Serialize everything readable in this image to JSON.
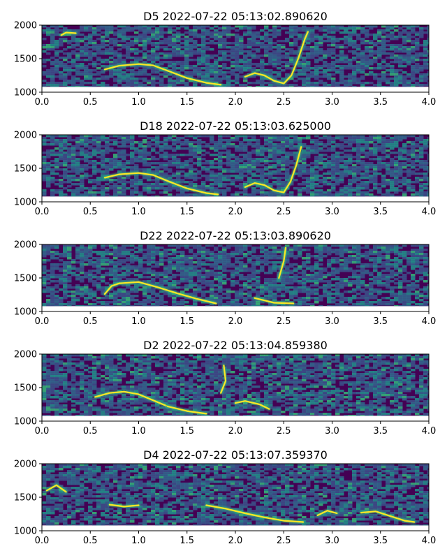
{
  "chart_data": [
    {
      "type": "heatmap",
      "title": "D5 2022-07-22 05:13:02.890620",
      "xlim": [
        0.0,
        4.0
      ],
      "ylim": [
        1000,
        2000
      ],
      "xticks": [
        "0.0",
        "0.5",
        "1.0",
        "1.5",
        "2.0",
        "2.5",
        "3.0",
        "3.5",
        "4.0"
      ],
      "yticks": [
        "1000",
        "1500",
        "2000"
      ],
      "colormap": "viridis",
      "traces": [
        {
          "points": [
            [
              0.65,
              1340
            ],
            [
              0.8,
              1395
            ],
            [
              1.0,
              1420
            ],
            [
              1.15,
              1400
            ],
            [
              1.3,
              1320
            ],
            [
              1.5,
              1210
            ],
            [
              1.7,
              1140
            ],
            [
              1.85,
              1110
            ]
          ]
        },
        {
          "points": [
            [
              2.1,
              1230
            ],
            [
              2.2,
              1285
            ],
            [
              2.3,
              1250
            ],
            [
              2.4,
              1170
            ],
            [
              2.5,
              1130
            ],
            [
              2.58,
              1250
            ],
            [
              2.65,
              1500
            ],
            [
              2.72,
              1800
            ],
            [
              2.75,
              1900
            ]
          ]
        },
        {
          "points": [
            [
              0.2,
              1850
            ],
            [
              0.25,
              1890
            ],
            [
              0.35,
              1880
            ]
          ]
        }
      ]
    },
    {
      "type": "heatmap",
      "title": "D18 2022-07-22 05:13:03.625000",
      "xlim": [
        0.0,
        4.0
      ],
      "ylim": [
        1000,
        2000
      ],
      "xticks": [
        "0.0",
        "0.5",
        "1.0",
        "1.5",
        "2.0",
        "2.5",
        "3.0",
        "3.5",
        "4.0"
      ],
      "yticks": [
        "1000",
        "1500",
        "2000"
      ],
      "colormap": "viridis",
      "traces": [
        {
          "points": [
            [
              0.65,
              1360
            ],
            [
              0.8,
              1410
            ],
            [
              1.0,
              1430
            ],
            [
              1.15,
              1400
            ],
            [
              1.3,
              1310
            ],
            [
              1.5,
              1200
            ],
            [
              1.7,
              1130
            ],
            [
              1.82,
              1110
            ]
          ]
        },
        {
          "points": [
            [
              2.1,
              1220
            ],
            [
              2.2,
              1280
            ],
            [
              2.3,
              1250
            ],
            [
              2.4,
              1170
            ],
            [
              2.5,
              1140
            ],
            [
              2.57,
              1300
            ],
            [
              2.63,
              1550
            ],
            [
              2.68,
              1820
            ]
          ]
        }
      ]
    },
    {
      "type": "heatmap",
      "title": "D22 2022-07-22 05:13:03.890620",
      "xlim": [
        0.0,
        4.0
      ],
      "ylim": [
        1000,
        2000
      ],
      "xticks": [
        "0.0",
        "0.5",
        "1.0",
        "1.5",
        "2.0",
        "2.5",
        "3.0",
        "3.5",
        "4.0"
      ],
      "yticks": [
        "1000",
        "1500",
        "2000"
      ],
      "colormap": "viridis",
      "traces": [
        {
          "points": [
            [
              0.65,
              1260
            ],
            [
              0.72,
              1380
            ],
            [
              0.8,
              1420
            ],
            [
              1.0,
              1440
            ],
            [
              1.2,
              1360
            ],
            [
              1.4,
              1270
            ],
            [
              1.6,
              1190
            ],
            [
              1.8,
              1120
            ]
          ]
        },
        {
          "points": [
            [
              2.45,
              1500
            ],
            [
              2.5,
              1750
            ],
            [
              2.52,
              1950
            ]
          ]
        },
        {
          "points": [
            [
              2.2,
              1200
            ],
            [
              2.4,
              1130
            ],
            [
              2.6,
              1120
            ]
          ]
        }
      ]
    },
    {
      "type": "heatmap",
      "title": "D2 2022-07-22 05:13:04.859380",
      "xlim": [
        0.0,
        4.0
      ],
      "ylim": [
        1000,
        2000
      ],
      "xticks": [
        "0.0",
        "0.5",
        "1.0",
        "1.5",
        "2.0",
        "2.5",
        "3.0",
        "3.5",
        "4.0"
      ],
      "yticks": [
        "1000",
        "1500",
        "2000"
      ],
      "colormap": "viridis",
      "traces": [
        {
          "points": [
            [
              0.55,
              1360
            ],
            [
              0.7,
              1420
            ],
            [
              0.85,
              1440
            ],
            [
              1.0,
              1400
            ],
            [
              1.15,
              1310
            ],
            [
              1.3,
              1220
            ]
          ]
        },
        {
          "points": [
            [
              1.3,
              1220
            ],
            [
              1.5,
              1150
            ],
            [
              1.7,
              1110
            ]
          ]
        },
        {
          "points": [
            [
              2.0,
              1270
            ],
            [
              2.1,
              1300
            ],
            [
              2.25,
              1250
            ],
            [
              2.35,
              1180
            ]
          ]
        },
        {
          "points": [
            [
              1.88,
              1830
            ],
            [
              1.9,
              1600
            ],
            [
              1.85,
              1420
            ]
          ]
        }
      ]
    },
    {
      "type": "heatmap",
      "title": "D4 2022-07-22 05:13:07.359370",
      "xlim": [
        0.0,
        4.0
      ],
      "ylim": [
        1000,
        2000
      ],
      "xticks": [
        "0.0",
        "0.5",
        "1.0",
        "1.5",
        "2.0",
        "2.5",
        "3.0",
        "3.5",
        "4.0"
      ],
      "yticks": [
        "1000",
        "1500",
        "2000"
      ],
      "colormap": "viridis",
      "traces": [
        {
          "points": [
            [
              1.7,
              1380
            ],
            [
              1.9,
              1330
            ],
            [
              2.1,
              1260
            ],
            [
              2.3,
              1200
            ],
            [
              2.5,
              1150
            ],
            [
              2.7,
              1130
            ]
          ]
        },
        {
          "points": [
            [
              3.3,
              1270
            ],
            [
              3.45,
              1290
            ],
            [
              3.6,
              1220
            ],
            [
              3.75,
              1150
            ],
            [
              3.85,
              1130
            ]
          ]
        },
        {
          "points": [
            [
              0.7,
              1390
            ],
            [
              0.85,
              1360
            ],
            [
              1.0,
              1380
            ]
          ]
        },
        {
          "points": [
            [
              2.85,
              1230
            ],
            [
              2.95,
              1300
            ],
            [
              3.05,
              1260
            ]
          ]
        },
        {
          "points": [
            [
              0.05,
              1600
            ],
            [
              0.15,
              1680
            ],
            [
              0.25,
              1580
            ]
          ]
        }
      ]
    }
  ],
  "colors": {
    "background": "#440154",
    "noise_mid": "#31688e",
    "noise_high": "#35b779",
    "peak": "#fde725",
    "axes": "#000000"
  }
}
